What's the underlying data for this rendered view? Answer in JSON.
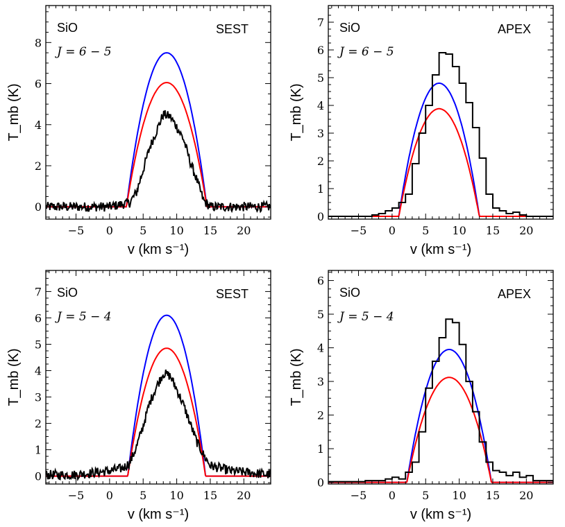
{
  "chart_data": [
    {
      "type": "line",
      "molecule": "SiO",
      "transition": "J = 6 − 5",
      "telescope": "SEST",
      "xlabel": "v (km s⁻¹)",
      "ylabel": "T_mb (K)",
      "xlim": [
        -9.5,
        24
      ],
      "ylim": [
        -0.6,
        9.8
      ],
      "xticks": [
        "−5",
        "0",
        "5",
        "10",
        "15",
        "20"
      ],
      "xtick_values": [
        -5,
        0,
        5,
        10,
        15,
        20
      ],
      "yticks": [
        "0",
        "2",
        "4",
        "6",
        "8"
      ],
      "ytick_values": [
        0,
        2,
        4,
        6,
        8
      ],
      "series": [
        {
          "color": "#0000ff",
          "style": "model-curve",
          "center": 8.5,
          "halfwidth": 6.0,
          "peak": 7.5
        },
        {
          "color": "#ff0000",
          "style": "model-curve",
          "center": 8.5,
          "halfwidth": 6.0,
          "peak": 6.05
        },
        {
          "color": "#000000",
          "style": "noisy-spectrum",
          "x": [
            -9.5,
            -5,
            0,
            3,
            4,
            5,
            6,
            7,
            8,
            9,
            10,
            11,
            12,
            13,
            14,
            15,
            20,
            24
          ],
          "y": [
            0,
            0,
            0,
            0.2,
            0.7,
            1.8,
            2.9,
            3.7,
            4.5,
            4.4,
            3.9,
            3.3,
            2.2,
            1.3,
            0.3,
            0,
            0,
            0
          ]
        }
      ]
    },
    {
      "type": "line",
      "molecule": "SiO",
      "transition": "J = 6 − 5",
      "telescope": "APEX",
      "xlabel": "v (km s⁻¹)",
      "ylabel": "T_mb (K)",
      "xlim": [
        -9.5,
        24
      ],
      "ylim": [
        -0.1,
        7.6
      ],
      "xticks": [
        "−5",
        "0",
        "5",
        "10",
        "15",
        "20"
      ],
      "xtick_values": [
        -5,
        0,
        5,
        10,
        15,
        20
      ],
      "yticks": [
        "0",
        "1",
        "2",
        "3",
        "4",
        "5",
        "6",
        "7"
      ],
      "ytick_values": [
        0,
        1,
        2,
        3,
        4,
        5,
        6,
        7
      ],
      "series": [
        {
          "color": "#0000ff",
          "style": "model-curve",
          "center": 7.0,
          "halfwidth": 6.0,
          "peak": 4.8
        },
        {
          "color": "#ff0000",
          "style": "model-curve",
          "center": 7.0,
          "halfwidth": 6.0,
          "peak": 3.88
        },
        {
          "color": "#000000",
          "style": "histogram",
          "x": [
            -9.5,
            -3,
            -2,
            -1,
            0,
            1,
            2,
            3,
            4,
            5,
            6,
            7,
            8,
            9,
            10,
            11,
            12,
            13,
            14,
            15,
            16,
            17,
            18,
            19,
            20,
            24
          ],
          "y": [
            0,
            0.05,
            0.1,
            0.2,
            0.3,
            0.5,
            0.8,
            1.9,
            3.0,
            4.0,
            5.1,
            5.9,
            5.85,
            5.4,
            4.8,
            4.1,
            3.2,
            2.1,
            0.8,
            0.3,
            0.2,
            0.1,
            0.15,
            0.05,
            0,
            0
          ]
        }
      ]
    },
    {
      "type": "line",
      "molecule": "SiO",
      "transition": "J = 5 − 4",
      "telescope": "SEST",
      "xlabel": "v (km s⁻¹)",
      "ylabel": "T_mb (K)",
      "xlim": [
        -9.5,
        24
      ],
      "ylim": [
        -0.3,
        7.8
      ],
      "xticks": [
        "−5",
        "0",
        "5",
        "10",
        "15",
        "20"
      ],
      "xtick_values": [
        -5,
        0,
        5,
        10,
        15,
        20
      ],
      "yticks": [
        "0",
        "1",
        "2",
        "3",
        "4",
        "5",
        "6",
        "7"
      ],
      "ytick_values": [
        0,
        1,
        2,
        3,
        4,
        5,
        6,
        7
      ],
      "series": [
        {
          "color": "#0000ff",
          "style": "model-curve",
          "center": 8.5,
          "halfwidth": 5.8,
          "peak": 6.1
        },
        {
          "color": "#ff0000",
          "style": "model-curve",
          "center": 8.5,
          "halfwidth": 5.8,
          "peak": 4.85
        },
        {
          "color": "#000000",
          "style": "noisy-spectrum",
          "x": [
            -9.5,
            -5,
            0,
            2,
            3,
            4,
            5,
            6,
            7,
            8,
            9,
            10,
            11,
            12,
            13,
            14,
            15,
            18,
            24
          ],
          "y": [
            0.05,
            0.05,
            0.2,
            0.3,
            0.5,
            1.1,
            1.9,
            2.8,
            3.4,
            3.9,
            3.8,
            3.3,
            2.7,
            2.0,
            1.3,
            0.8,
            0.4,
            0.2,
            0.05
          ]
        }
      ]
    },
    {
      "type": "line",
      "molecule": "SiO",
      "transition": "J = 5 − 4",
      "telescope": "APEX",
      "xlabel": "v (km s⁻¹)",
      "ylabel": "T_mb (K)",
      "xlim": [
        -9.5,
        24
      ],
      "ylim": [
        -0.05,
        6.3
      ],
      "xticks": [
        "−5",
        "0",
        "5",
        "10",
        "15",
        "20"
      ],
      "xtick_values": [
        -5,
        0,
        5,
        10,
        15,
        20
      ],
      "yticks": [
        "0",
        "1",
        "2",
        "3",
        "4",
        "5",
        "6"
      ],
      "ytick_values": [
        0,
        1,
        2,
        3,
        4,
        5,
        6
      ],
      "series": [
        {
          "color": "#0000ff",
          "style": "model-curve",
          "center": 8.5,
          "halfwidth": 6.3,
          "peak": 3.95
        },
        {
          "color": "#ff0000",
          "style": "model-curve",
          "center": 8.5,
          "halfwidth": 6.3,
          "peak": 3.12
        },
        {
          "color": "#000000",
          "style": "histogram",
          "x": [
            -9.5,
            -4,
            -1,
            0,
            1,
            2,
            3,
            4,
            5,
            6,
            7,
            8,
            9,
            10,
            11,
            12,
            13,
            14,
            15,
            16,
            17,
            18,
            19,
            20,
            21,
            22,
            24
          ],
          "y": [
            0.02,
            0.05,
            0.1,
            0.15,
            0.1,
            0.3,
            0.6,
            1.5,
            2.8,
            3.6,
            4.3,
            4.85,
            4.75,
            4.1,
            3.0,
            2.1,
            1.2,
            0.6,
            0.35,
            0.3,
            0.2,
            0.3,
            0.15,
            0.2,
            0.05,
            0.05,
            0
          ]
        }
      ]
    }
  ]
}
